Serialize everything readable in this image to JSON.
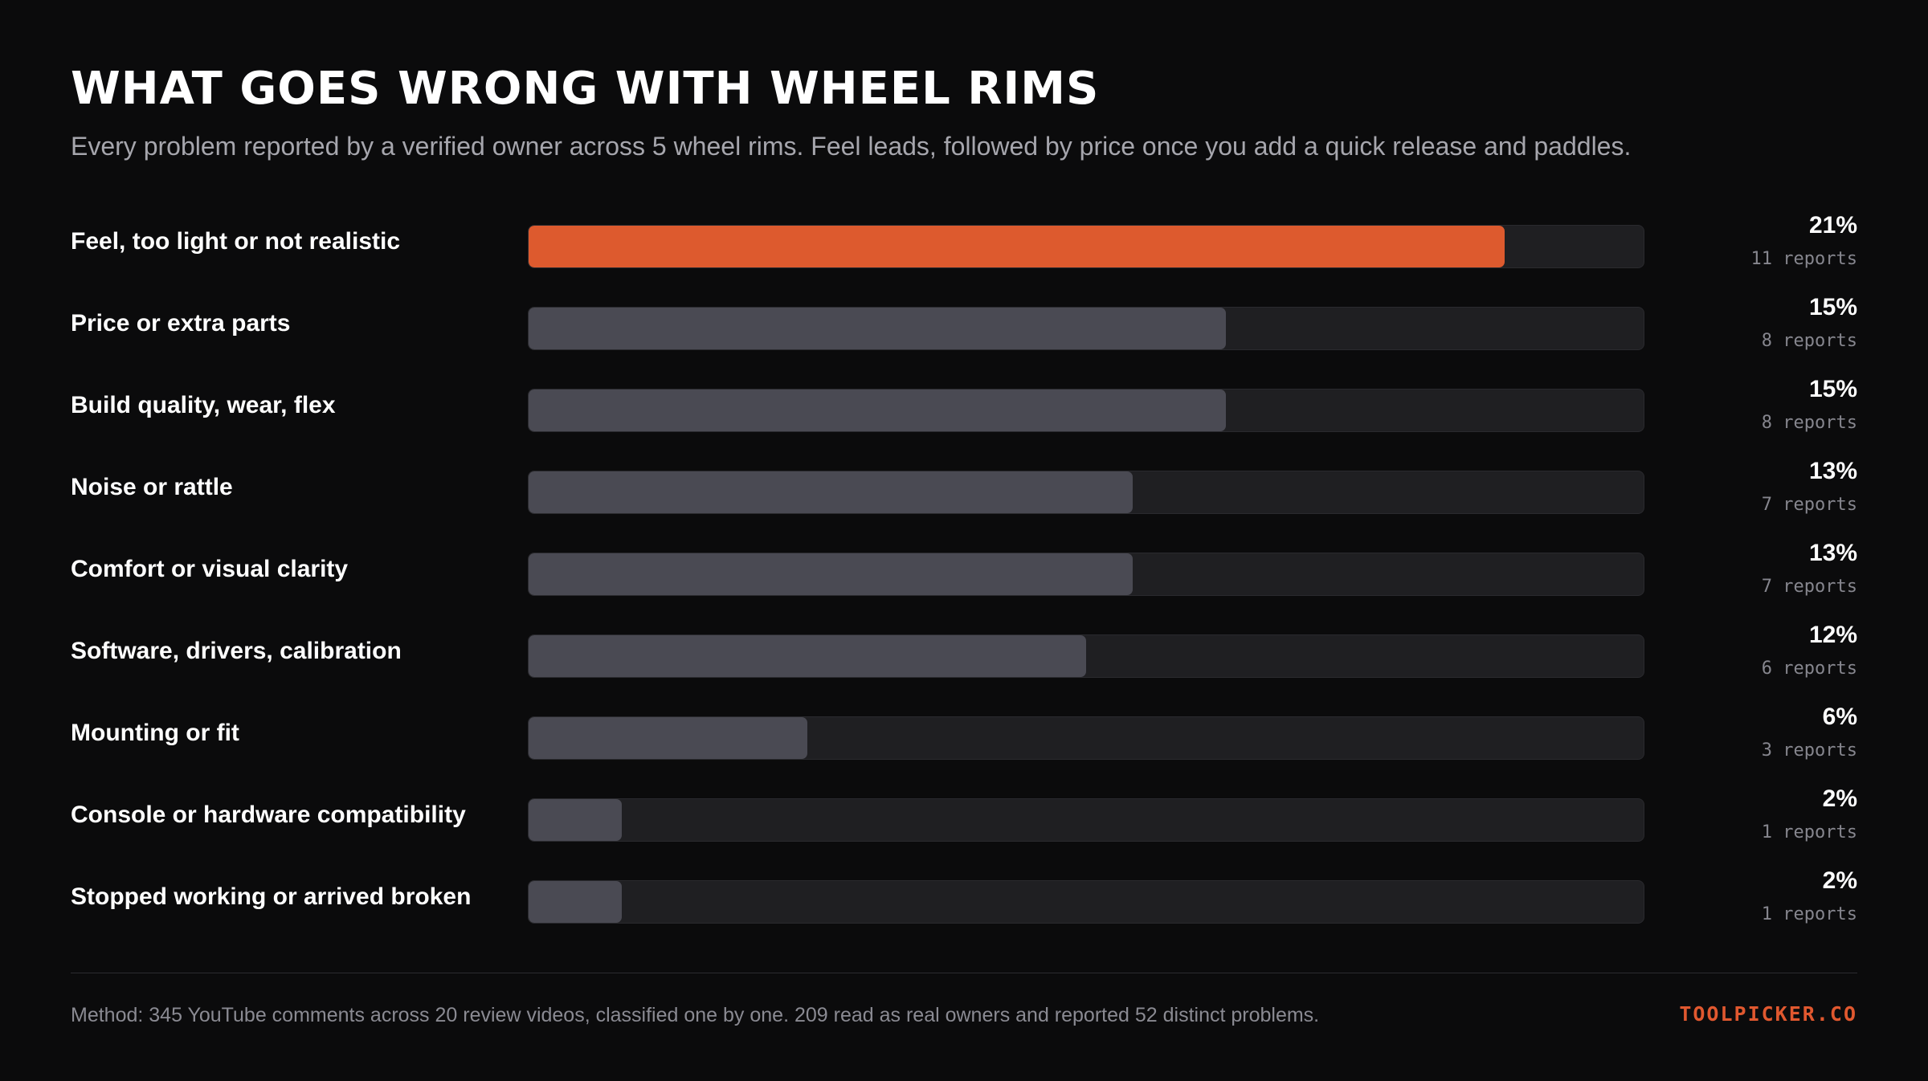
{
  "header": {
    "title": "WHAT GOES WRONG WITH WHEEL RIMS",
    "subtitle": "Every problem reported by a verified owner across 5 wheel rims. Feel leads, followed by price once you add a quick release and paddles."
  },
  "colors": {
    "background": "#0b0b0c",
    "highlight_bar": "#dd5a2e",
    "default_bar": "#4a4a53",
    "track": "#1f1f22",
    "brand": "#e0582f"
  },
  "chart_data": {
    "type": "bar",
    "orientation": "horizontal",
    "title": "WHAT GOES WRONG WITH WHEEL RIMS",
    "subtitle": "Every problem reported by a verified owner across 5 wheel rims. Feel leads, followed by price once you add a quick release and paddles.",
    "xlim": [
      0,
      24
    ],
    "highlight_index": 0,
    "categories": [
      "Feel, too light or not realistic",
      "Price or extra parts",
      "Build quality, wear, flex",
      "Noise or rattle",
      "Comfort or visual clarity",
      "Software, drivers, calibration",
      "Mounting or fit",
      "Console or hardware compatibility",
      "Stopped working or arrived broken"
    ],
    "values": [
      21,
      15,
      15,
      13,
      13,
      12,
      6,
      2,
      2
    ],
    "value_labels": [
      "21%",
      "15%",
      "15%",
      "13%",
      "13%",
      "12%",
      "6%",
      "2%",
      "2%"
    ],
    "counts": [
      11,
      8,
      8,
      7,
      7,
      6,
      3,
      1,
      1
    ],
    "count_labels": [
      "11 reports",
      "8 reports",
      "8 reports",
      "7 reports",
      "7 reports",
      "6 reports",
      "3 reports",
      "1 reports",
      "1 reports"
    ]
  },
  "footer": {
    "method": "Method: 345 YouTube comments across 20 review videos, classified one by one. 209 read as real owners and reported 52 distinct problems.",
    "brand": "TOOLPICKER.CO"
  }
}
